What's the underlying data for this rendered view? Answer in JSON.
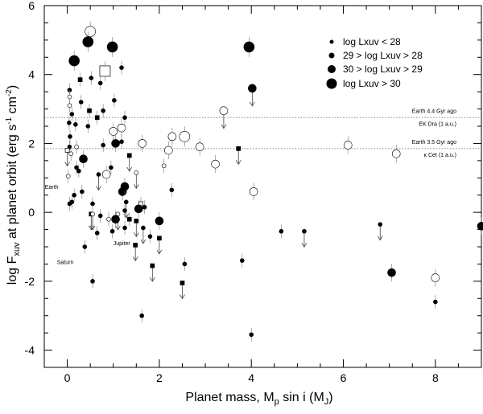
{
  "chart_data": {
    "type": "scatter",
    "xlabel": "Planet mass, M",
    "xlabel_sub_p": "p",
    "xlabel_mid": " sin i (M",
    "xlabel_sub_j": "J",
    "xlabel_end": ")",
    "ylabel": "log F",
    "ylabel_sub": "xuv",
    "ylabel_mid": " at planet orbit (erg s",
    "ylabel_sup1": "-1",
    "ylabel_mid2": " cm",
    "ylabel_sup2": "-2",
    "ylabel_end": ")",
    "xlim": [
      -0.5,
      9
    ],
    "ylim": [
      -4.5,
      6
    ],
    "x_ticks": [
      "0",
      "2",
      "4",
      "6",
      "8"
    ],
    "y_ticks": [
      "-4",
      "-2",
      "0",
      "2",
      "4",
      "6"
    ],
    "legend": [
      "log Lxuv < 28",
      "29 > log Lxuv > 28",
      "30 > log Lxuv > 29",
      "log Lxuv > 30"
    ],
    "reference_lines": [
      {
        "y": 2.75,
        "label_top": "Earth 4.4 Gyr ago",
        "label_bottom": "EK Dra (1 a.u.)"
      },
      {
        "y": 1.85,
        "label_top": "Earth 3.5 Gyr ago",
        "label_bottom": "κ Cet (1 a.u.)"
      }
    ],
    "planet_labels": [
      {
        "text": "Earth",
        "x": 0.003,
        "y": 0.45
      },
      {
        "text": "Jupiter",
        "x": 1.0,
        "y": -0.95
      },
      {
        "text": "Saturn",
        "x": 0.3,
        "y": -1.5
      }
    ],
    "points": [
      {
        "x": 0.5,
        "y": 5.25,
        "s": 3,
        "f": false
      },
      {
        "x": 0.45,
        "y": 4.95,
        "s": 3,
        "f": true,
        "up": true
      },
      {
        "x": 0.98,
        "y": 4.8,
        "s": 3,
        "f": true
      },
      {
        "x": 0.15,
        "y": 4.4,
        "s": 3,
        "f": true
      },
      {
        "x": 0.82,
        "y": 4.1,
        "s": 3,
        "f": false,
        "sq": true
      },
      {
        "x": 1.18,
        "y": 4.2,
        "s": 1,
        "f": true
      },
      {
        "x": 3.95,
        "y": 4.8,
        "s": 3,
        "f": true
      },
      {
        "x": 4.02,
        "y": 3.6,
        "s": 2,
        "f": true,
        "arrow": true
      },
      {
        "x": 0.05,
        "y": 3.55,
        "s": 1,
        "f": true
      },
      {
        "x": 0.28,
        "y": 3.85,
        "s": 1,
        "f": true,
        "sq": true
      },
      {
        "x": 0.52,
        "y": 3.9,
        "s": 1,
        "f": true
      },
      {
        "x": 0.72,
        "y": 3.75,
        "s": 1,
        "f": true
      },
      {
        "x": 0.05,
        "y": 3.35,
        "s": 1,
        "f": false
      },
      {
        "x": 0.3,
        "y": 3.2,
        "s": 1,
        "f": true
      },
      {
        "x": 1.02,
        "y": 3.25,
        "s": 1,
        "f": true
      },
      {
        "x": 0.05,
        "y": 3.1,
        "s": 1,
        "f": false
      },
      {
        "x": 0.48,
        "y": 2.95,
        "s": 1,
        "f": true,
        "sq": true
      },
      {
        "x": 0.65,
        "y": 2.75,
        "s": 1,
        "f": true,
        "sq": true
      },
      {
        "x": 0.78,
        "y": 2.95,
        "s": 1,
        "f": true
      },
      {
        "x": 1.25,
        "y": 2.75,
        "s": 1,
        "f": true
      },
      {
        "x": 0.1,
        "y": 2.85,
        "s": 1,
        "f": true
      },
      {
        "x": 0.04,
        "y": 2.6,
        "s": 1,
        "f": true
      },
      {
        "x": 0.18,
        "y": 2.55,
        "s": 1,
        "f": true
      },
      {
        "x": 0.45,
        "y": 2.5,
        "s": 1,
        "f": true
      },
      {
        "x": 0.06,
        "y": 2.2,
        "s": 1,
        "f": true
      },
      {
        "x": 0.05,
        "y": 1.9,
        "s": 1,
        "f": true
      },
      {
        "x": 0.2,
        "y": 1.9,
        "s": 1,
        "f": false
      },
      {
        "x": 0.78,
        "y": 1.95,
        "s": 1,
        "f": true
      },
      {
        "x": 1.05,
        "y": 2.0,
        "s": 2,
        "f": true
      },
      {
        "x": 1.18,
        "y": 2.05,
        "s": 1,
        "f": true
      },
      {
        "x": 1.0,
        "y": 2.35,
        "s": 2,
        "f": false
      },
      {
        "x": 1.18,
        "y": 2.45,
        "s": 2,
        "f": false
      },
      {
        "x": 0.0,
        "y": 1.8,
        "s": 1,
        "f": false,
        "sq": true,
        "arrow": true
      },
      {
        "x": 0.08,
        "y": 1.7,
        "s": 1,
        "f": false
      },
      {
        "x": 0.35,
        "y": 1.55,
        "s": 2,
        "f": true
      },
      {
        "x": 0.85,
        "y": 1.1,
        "s": 2,
        "f": false
      },
      {
        "x": 0.68,
        "y": 1.1,
        "s": 1,
        "f": true,
        "arrow": true
      },
      {
        "x": 0.95,
        "y": 1.3,
        "s": 1,
        "f": true
      },
      {
        "x": 1.35,
        "y": 1.65,
        "s": 1,
        "f": true,
        "sq": true,
        "arrow": true
      },
      {
        "x": 1.5,
        "y": 1.15,
        "s": 1,
        "f": false,
        "arrow": true
      },
      {
        "x": 1.63,
        "y": 2.0,
        "s": 2,
        "f": false
      },
      {
        "x": 2.1,
        "y": 1.35,
        "s": 1,
        "f": false
      },
      {
        "x": 2.28,
        "y": 2.2,
        "s": 2,
        "f": false
      },
      {
        "x": 2.2,
        "y": 1.8,
        "s": 2,
        "f": false
      },
      {
        "x": 2.55,
        "y": 2.2,
        "s": 3,
        "f": false
      },
      {
        "x": 2.88,
        "y": 1.9,
        "s": 2,
        "f": false
      },
      {
        "x": 3.22,
        "y": 1.4,
        "s": 2,
        "f": false
      },
      {
        "x": 3.4,
        "y": 2.95,
        "s": 2,
        "f": false,
        "arrow": true
      },
      {
        "x": 3.72,
        "y": 1.85,
        "s": 1,
        "f": true,
        "sq": true,
        "arrow": true
      },
      {
        "x": 4.05,
        "y": 0.6,
        "s": 2,
        "f": false
      },
      {
        "x": 6.1,
        "y": 1.95,
        "s": 2,
        "f": false
      },
      {
        "x": 7.15,
        "y": 1.7,
        "s": 2,
        "f": false
      },
      {
        "x": 0.2,
        "y": 1.3,
        "s": 1,
        "f": true
      },
      {
        "x": 0.25,
        "y": 1.2,
        "s": 1,
        "f": true
      },
      {
        "x": 0.02,
        "y": 1.05,
        "s": 1,
        "f": false
      },
      {
        "x": 0.15,
        "y": 0.5,
        "s": 1,
        "f": true
      },
      {
        "x": 0.32,
        "y": 0.6,
        "s": 1,
        "f": true
      },
      {
        "x": 0.1,
        "y": 0.3,
        "s": 1,
        "f": true
      },
      {
        "x": 0.05,
        "y": 0.25,
        "s": 1,
        "f": true
      },
      {
        "x": 0.55,
        "y": 0.25,
        "s": 1,
        "f": true
      },
      {
        "x": 1.2,
        "y": 0.6,
        "s": 2,
        "f": true
      },
      {
        "x": 1.25,
        "y": 0.75,
        "s": 2,
        "f": true
      },
      {
        "x": 1.28,
        "y": 0.3,
        "s": 1,
        "f": true,
        "arrow": true
      },
      {
        "x": 2.27,
        "y": 0.65,
        "s": 1,
        "f": true
      },
      {
        "x": 1.6,
        "y": 0.25,
        "s": 1,
        "f": false,
        "sq": true
      },
      {
        "x": 1.55,
        "y": 0.1,
        "s": 2,
        "f": true
      },
      {
        "x": 1.68,
        "y": 0.15,
        "s": 1,
        "f": true
      },
      {
        "x": 1.25,
        "y": 0.05,
        "s": 1,
        "f": true
      },
      {
        "x": 1.1,
        "y": -0.05,
        "s": 1,
        "f": false,
        "arrow": true
      },
      {
        "x": 1.05,
        "y": -0.2,
        "s": 2,
        "f": true
      },
      {
        "x": 0.98,
        "y": -0.55,
        "s": 1,
        "f": true
      },
      {
        "x": 1.35,
        "y": -0.2,
        "s": 1,
        "f": true,
        "sq": true
      },
      {
        "x": 1.5,
        "y": -0.25,
        "s": 1,
        "f": true,
        "sq": true,
        "arrow": true
      },
      {
        "x": 2.0,
        "y": -0.25,
        "s": 2,
        "f": true
      },
      {
        "x": 1.25,
        "y": -0.45,
        "s": 1,
        "f": true
      },
      {
        "x": 1.65,
        "y": -0.45,
        "s": 1,
        "f": true,
        "arrow": true
      },
      {
        "x": 1.8,
        "y": -0.7,
        "s": 1,
        "f": true
      },
      {
        "x": 0.52,
        "y": -0.05,
        "s": 1,
        "f": true,
        "sq": true,
        "arrow": true
      },
      {
        "x": 0.72,
        "y": -0.1,
        "s": 1,
        "f": true
      },
      {
        "x": 0.65,
        "y": -0.6,
        "s": 1,
        "f": true
      },
      {
        "x": 1.48,
        "y": -0.95,
        "s": 1,
        "f": true,
        "sq": true,
        "arrow": true
      },
      {
        "x": 2.0,
        "y": -0.75,
        "s": 1,
        "f": true,
        "sq": true,
        "arrow": true
      },
      {
        "x": 1.85,
        "y": -1.55,
        "s": 1,
        "f": true,
        "sq": true,
        "arrow": true
      },
      {
        "x": 2.55,
        "y": -1.5,
        "s": 1,
        "f": true
      },
      {
        "x": 2.5,
        "y": -2.05,
        "s": 1,
        "f": true,
        "sq": true,
        "arrow": true
      },
      {
        "x": 0.38,
        "y": -1.0,
        "s": 1,
        "f": true
      },
      {
        "x": 0.55,
        "y": -2.0,
        "s": 1,
        "f": true
      },
      {
        "x": 1.62,
        "y": -3.0,
        "s": 1,
        "f": true
      },
      {
        "x": 3.8,
        "y": -1.4,
        "s": 1,
        "f": true
      },
      {
        "x": 4.0,
        "y": -3.55,
        "s": 1,
        "f": true
      },
      {
        "x": 4.65,
        "y": -0.55,
        "s": 1,
        "f": true
      },
      {
        "x": 5.15,
        "y": -0.55,
        "s": 1,
        "f": true,
        "arrow": true
      },
      {
        "x": 6.8,
        "y": -0.35,
        "s": 1,
        "f": true,
        "arrow": true
      },
      {
        "x": 7.05,
        "y": -1.75,
        "s": 2,
        "f": true
      },
      {
        "x": 8.0,
        "y": -1.9,
        "s": 2,
        "f": false
      },
      {
        "x": 8.0,
        "y": -2.6,
        "s": 1,
        "f": true
      },
      {
        "x": 9.0,
        "y": -0.4,
        "s": 2,
        "f": true
      },
      {
        "x": 0.9,
        "y": -0.2,
        "s": 1,
        "f": false
      },
      {
        "x": 0.55,
        "y": -0.05,
        "s": 1,
        "f": false,
        "arrow": true
      }
    ]
  }
}
